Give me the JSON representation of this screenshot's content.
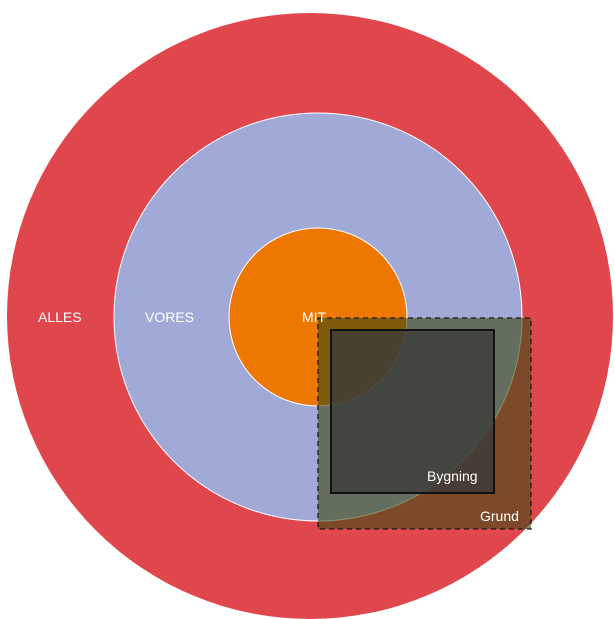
{
  "diagram": {
    "rings": {
      "outer": {
        "label": "ALLES",
        "color": "#e0474c"
      },
      "middle": {
        "label": "VORES",
        "color": "#a1a9d7"
      },
      "inner": {
        "label": "MIT",
        "color": "#ed7700"
      }
    },
    "overlay": {
      "grund": {
        "label": "Grund",
        "color": "#6b5d1c",
        "border": "dashed"
      },
      "bygning": {
        "label": "Bygning",
        "color": "#474747",
        "border": "solid"
      }
    }
  }
}
